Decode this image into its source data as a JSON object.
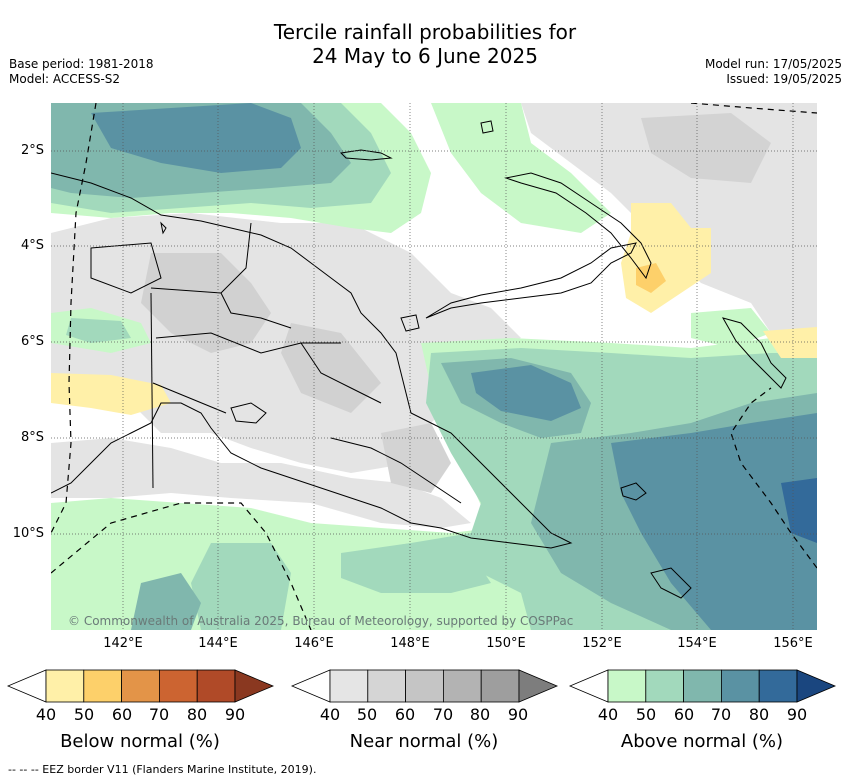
{
  "title_line1": "Tercile rainfall probabilities for",
  "title_line2": "24 May to 6 June 2025",
  "meta_left": [
    "Base period: 1981-2018",
    "Model: ACCESS-S2"
  ],
  "meta_right": [
    "Model run: 17/05/2025",
    "Issued: 19/05/2025"
  ],
  "lat_ticks": [
    "2°S",
    "4°S",
    "6°S",
    "8°S",
    "10°S"
  ],
  "lon_ticks": [
    "142°E",
    "144°E",
    "146°E",
    "148°E",
    "150°E",
    "152°E",
    "154°E",
    "156°E"
  ],
  "credit": "© Commonwealth of Australia 2025, Bureau of Meteorology, supported by COSPPac",
  "colorbars": [
    {
      "title": "Below normal (%)",
      "ticks": [
        "40",
        "50",
        "60",
        "70",
        "80",
        "90"
      ],
      "colors": [
        "#fff0a8",
        "#fdd06a",
        "#e39448",
        "#cc6431",
        "#b04a28",
        "#8a3820"
      ]
    },
    {
      "title": "Near normal (%)",
      "ticks": [
        "40",
        "50",
        "60",
        "70",
        "80",
        "90"
      ],
      "colors": [
        "#e5e5e5",
        "#d5d5d5",
        "#c5c5c5",
        "#b3b3b3",
        "#9e9e9e",
        "#7d7d7d"
      ]
    },
    {
      "title": "Above normal (%)",
      "ticks": [
        "40",
        "50",
        "60",
        "70",
        "80",
        "90"
      ],
      "colors": [
        "#c8f8c8",
        "#a2d9bc",
        "#80b7ad",
        "#5a92a3",
        "#336a9a",
        "#1a467f"
      ]
    }
  ],
  "footnote": "--  --  -- EEZ border V11 (Flanders Marine Institute, 2019)."
}
